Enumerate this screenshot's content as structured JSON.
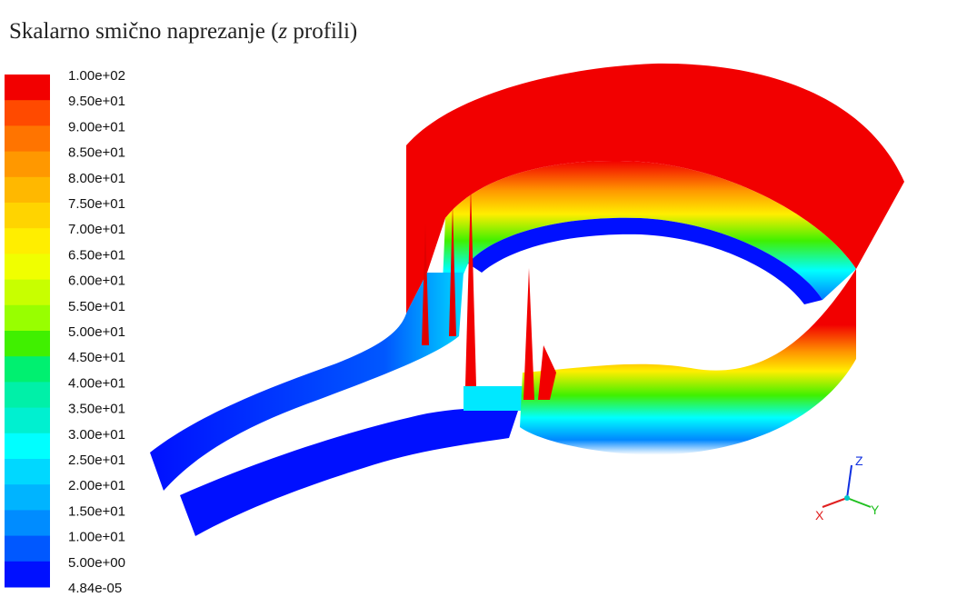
{
  "title": {
    "parts": [
      "Skalarno smično naprezanje (",
      "z",
      " profili)"
    ]
  },
  "legend": {
    "labels": [
      "1.00e+02",
      "9.50e+01",
      "9.00e+01",
      "8.50e+01",
      "8.00e+01",
      "7.50e+01",
      "7.00e+01",
      "6.50e+01",
      "6.00e+01",
      "5.50e+01",
      "5.00e+01",
      "4.50e+01",
      "4.00e+01",
      "3.50e+01",
      "3.00e+01",
      "2.50e+01",
      "2.00e+01",
      "1.50e+01",
      "1.00e+01",
      "5.00e+00",
      "4.84e-05"
    ],
    "colors": [
      "#f20000",
      "#ff4a00",
      "#ff7400",
      "#ff9800",
      "#ffb800",
      "#ffd400",
      "#ffee00",
      "#f0ff00",
      "#c8ff00",
      "#98ff00",
      "#40f000",
      "#00f070",
      "#00f0a8",
      "#00f0d0",
      "#00ffff",
      "#00d8ff",
      "#00b4ff",
      "#008cff",
      "#0058ff",
      "#0010ff"
    ]
  },
  "triad": {
    "x": "X",
    "y": "Y",
    "z": "Z"
  }
}
